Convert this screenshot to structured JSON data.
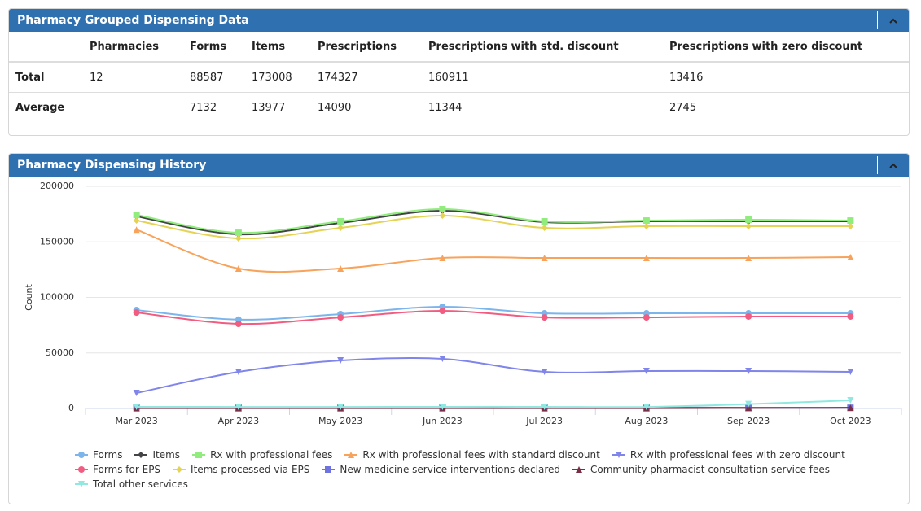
{
  "table_panel": {
    "title": "Pharmacy Grouped Dispensing Data",
    "columns": [
      "Pharmacies",
      "Forms",
      "Items",
      "Prescriptions",
      "Prescriptions with std. discount",
      "Prescriptions with zero discount"
    ],
    "rows": [
      {
        "label": "Total",
        "values": [
          12,
          88587,
          173008,
          174327,
          160911,
          13416
        ]
      },
      {
        "label": "Average",
        "values": [
          null,
          7132,
          13977,
          14090,
          11344,
          2745
        ]
      }
    ]
  },
  "chart_panel": {
    "title": "Pharmacy Dispensing History"
  },
  "chart_data": {
    "type": "line",
    "y_label": "Count",
    "categories": [
      "Mar 2023",
      "Apr 2023",
      "May 2023",
      "Jun 2023",
      "Jul 2023",
      "Aug 2023",
      "Sep 2023",
      "Oct 2023"
    ],
    "ylim": [
      0,
      200000
    ],
    "yticks": [
      0,
      50000,
      100000,
      150000,
      200000
    ],
    "grid": true,
    "series": [
      {
        "name": "Forms",
        "color": "#7cb5ec",
        "marker": "circle",
        "values": [
          88600,
          80000,
          85000,
          91600,
          85700,
          85700,
          85700,
          85700
        ]
      },
      {
        "name": "Items",
        "color": "#434348",
        "marker": "diamond",
        "values": [
          173000,
          156800,
          167000,
          178000,
          167800,
          168500,
          168500,
          168500
        ]
      },
      {
        "name": "Rx with professional fees",
        "color": "#90ed7d",
        "marker": "square",
        "values": [
          174300,
          158200,
          168500,
          179500,
          168500,
          169200,
          170000,
          169200
        ]
      },
      {
        "name": "Rx with professional fees with standard discount",
        "color": "#f7a35c",
        "marker": "triangle",
        "values": [
          161000,
          126000,
          126000,
          135500,
          135500,
          135500,
          135500,
          136300
        ]
      },
      {
        "name": "Rx with professional fees with zero discount",
        "color": "#8085e9",
        "marker": "triangle-down",
        "values": [
          13900,
          33000,
          43200,
          44700,
          33000,
          33700,
          33700,
          33000
        ]
      },
      {
        "name": "Forms for EPS",
        "color": "#f15c80",
        "marker": "circle",
        "values": [
          86400,
          76200,
          82000,
          87900,
          82000,
          82000,
          82800,
          82800
        ]
      },
      {
        "name": "Items processed via EPS",
        "color": "#e4d354",
        "marker": "diamond",
        "values": [
          169200,
          153100,
          162600,
          173600,
          162600,
          164100,
          164100,
          164100
        ]
      },
      {
        "name": "New medicine service interventions declared",
        "color": "#6f73e0",
        "marker": "square",
        "values": [
          1000,
          900,
          900,
          1000,
          1100,
          1000,
          600,
          600
        ]
      },
      {
        "name": "Community pharmacist consultation service fees",
        "color": "#7a2e45",
        "marker": "triangle",
        "values": [
          300,
          300,
          300,
          300,
          300,
          300,
          500,
          600
        ]
      },
      {
        "name": "Total other services",
        "color": "#91e8e1",
        "marker": "triangle-down",
        "values": [
          1500,
          1400,
          1400,
          1500,
          1500,
          1400,
          3900,
          7300
        ]
      }
    ]
  }
}
